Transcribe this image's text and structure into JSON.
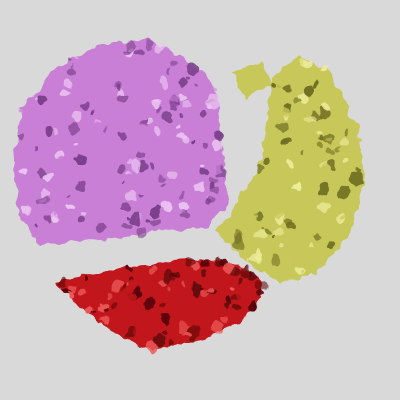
{
  "viewer": {
    "background_color": "#d9d9d9"
  },
  "surfaces": [
    {
      "name": "density-surface-violet",
      "base_color": "#c97fd6",
      "dark_color": "#7a3f8a",
      "light_color": "#ecc4f2"
    },
    {
      "name": "density-surface-olive",
      "base_color": "#c8c85a",
      "dark_color": "#6f6f22",
      "light_color": "#ecec9a"
    },
    {
      "name": "density-surface-red",
      "base_color": "#c0171b",
      "dark_color": "#5a0508",
      "light_color": "#ee5a5a"
    }
  ]
}
